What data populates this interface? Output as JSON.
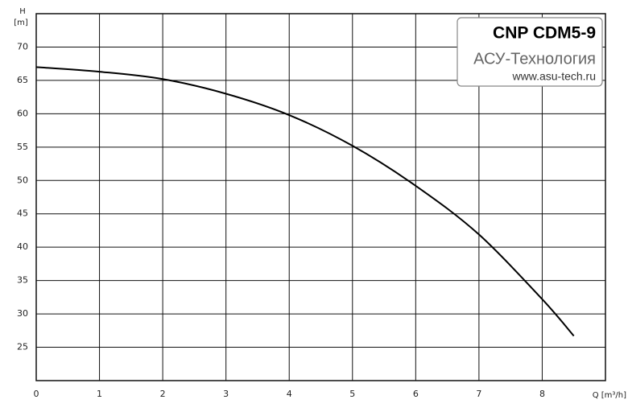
{
  "chart_data": {
    "type": "line",
    "y_label": "H",
    "y_unit": "[m]",
    "x_label": "Q [m³/h]",
    "x": [
      0,
      1,
      2,
      3,
      4,
      5,
      6,
      7,
      8,
      8.5
    ],
    "values": [
      67,
      66.3,
      65.2,
      63,
      59.8,
      55.2,
      49.2,
      41.9,
      32.2,
      26.7
    ],
    "color": "#000000",
    "xlim": [
      0,
      9
    ],
    "xticks": [
      0,
      1,
      2,
      3,
      4,
      5,
      6,
      7,
      8
    ],
    "ylim": [
      20,
      75
    ],
    "yticks": [
      25,
      30,
      35,
      40,
      45,
      50,
      55,
      60,
      65,
      70
    ],
    "grid": true,
    "legend": {
      "title": "CNP CDM5-9",
      "company": "АСУ-Технология",
      "url": "www.asu-tech.ru"
    }
  }
}
